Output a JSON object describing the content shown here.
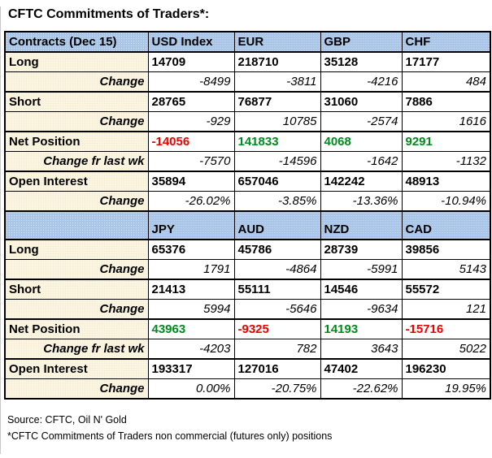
{
  "title": "CFTC Commitments of Traders*:",
  "colors": {
    "header_bg": "#A9C6E9",
    "label_bg": "#FAF5E1",
    "positive_value": "#008A1E",
    "negative_value": "#EE0000",
    "border": "#000000"
  },
  "footer": {
    "source": "Source: CFTC, Oil N' Gold",
    "footnote": "*CFTC Commitments of Traders non commercial (futures only) positions"
  },
  "chart_data": {
    "type": "table",
    "title": "CFTC Commitments of Traders*:",
    "report_date": "Dec 15",
    "sections": [
      {
        "header": [
          "Contracts (Dec 15)",
          "USD Index",
          "EUR",
          "GBP",
          "CHF"
        ],
        "rows": [
          {
            "label": "Long",
            "type": "metric",
            "values": [
              "14709",
              "218710",
              "35128",
              "17177"
            ]
          },
          {
            "label": "Change",
            "type": "change",
            "values": [
              "-8499",
              "-3811",
              "-4216",
              "484"
            ]
          },
          {
            "label": "Short",
            "type": "metric",
            "values": [
              "28765",
              "76877",
              "31060",
              "7886"
            ]
          },
          {
            "label": "Change",
            "type": "change",
            "values": [
              "-929",
              "10785",
              "-2574",
              "1616"
            ]
          },
          {
            "label": "Net Position",
            "type": "net",
            "values": [
              "-14056",
              "141833",
              "4068",
              "9291"
            ]
          },
          {
            "label": "Change fr last wk",
            "type": "change",
            "values": [
              "-7570",
              "-14596",
              "-1642",
              "-1132"
            ]
          },
          {
            "label": "Open Interest",
            "type": "metric",
            "values": [
              "35894",
              "657046",
              "142242",
              "48913"
            ]
          },
          {
            "label": "Change",
            "type": "change",
            "values": [
              "-26.02%",
              "-3.85%",
              "-13.36%",
              "-10.94%"
            ]
          }
        ]
      },
      {
        "header": [
          "",
          "JPY",
          "AUD",
          "NZD",
          "CAD"
        ],
        "rows": [
          {
            "label": "Long",
            "type": "metric",
            "values": [
              "65376",
              "45786",
              "28739",
              "39856"
            ]
          },
          {
            "label": "Change",
            "type": "change",
            "values": [
              "1791",
              "-4864",
              "-5991",
              "5143"
            ]
          },
          {
            "label": "Short",
            "type": "metric",
            "values": [
              "21413",
              "55111",
              "14546",
              "55572"
            ]
          },
          {
            "label": "Change",
            "type": "change",
            "values": [
              "5994",
              "-5646",
              "-9634",
              "121"
            ]
          },
          {
            "label": "Net Position",
            "type": "net",
            "values": [
              "43963",
              "-9325",
              "14193",
              "-15716"
            ]
          },
          {
            "label": "Change fr last wk",
            "type": "change",
            "values": [
              "-4203",
              "782",
              "3643",
              "5022"
            ]
          },
          {
            "label": "Open Interest",
            "type": "metric",
            "values": [
              "193317",
              "127016",
              "47402",
              "196230"
            ]
          },
          {
            "label": "Change",
            "type": "change",
            "values": [
              "0.00%",
              "-20.75%",
              "-22.62%",
              "19.95%"
            ]
          }
        ]
      }
    ]
  }
}
